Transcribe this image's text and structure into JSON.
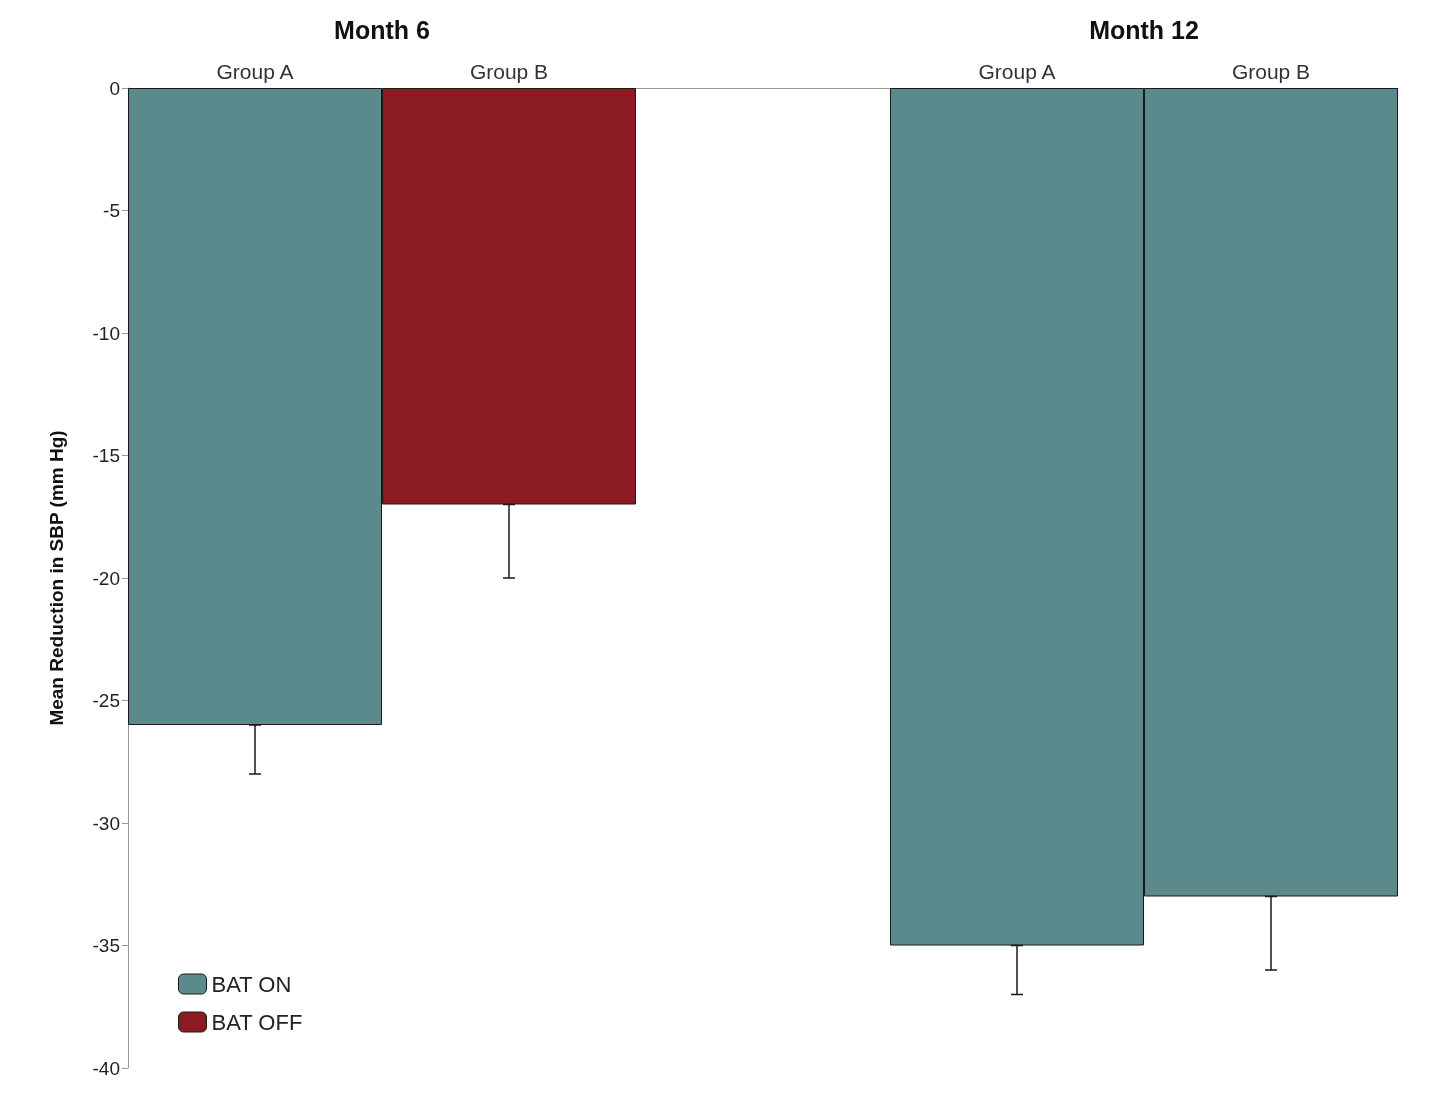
{
  "chart_data": {
    "type": "bar",
    "ylabel": "Mean Reduction in SBP (mm Hg)",
    "categories": [
      "Group A",
      "Group B",
      null,
      "Group A",
      "Group B"
    ],
    "series": [
      {
        "name": "BAT ON",
        "color": "#5a8a8c",
        "values": [
          -26,
          null,
          null,
          -35,
          -33
        ],
        "errors": [
          [
            -28,
            -26
          ],
          null,
          null,
          [
            -37,
            -35
          ],
          [
            -36,
            -33
          ]
        ]
      },
      {
        "name": "BAT OFF",
        "color": "#8b1a22",
        "values": [
          null,
          -17,
          null,
          null,
          null
        ],
        "errors": [
          null,
          [
            -20,
            -17
          ],
          null,
          null,
          null
        ]
      }
    ],
    "stacked": true,
    "ylim": [
      -40,
      0
    ],
    "yticks": [
      0,
      -5,
      -10,
      -15,
      -20,
      -25,
      -30,
      -35,
      -40
    ],
    "annotations": [
      "Month 6",
      "Month 12"
    ],
    "grid": false,
    "legend": "bottom left"
  }
}
